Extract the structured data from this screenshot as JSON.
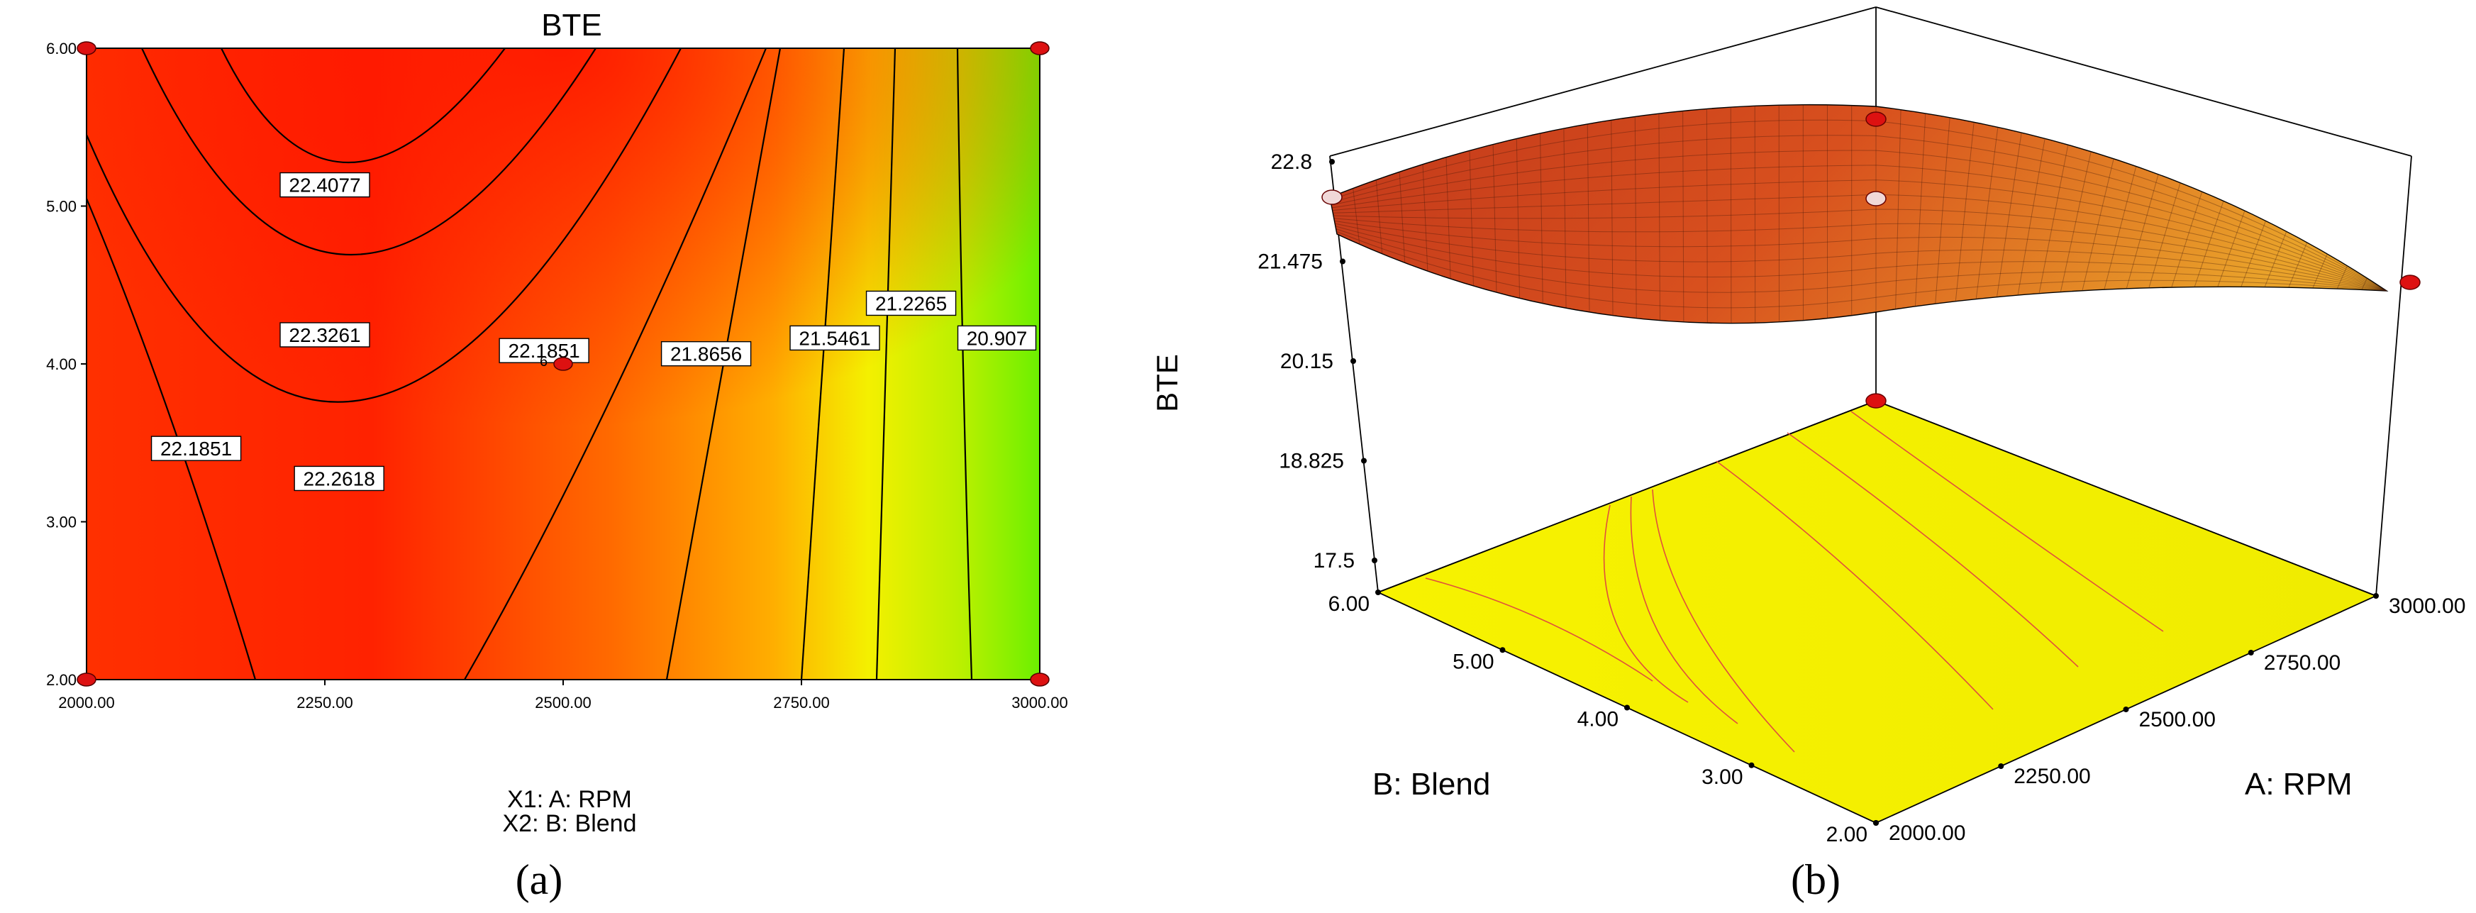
{
  "chart_data": [
    {
      "panel": "(a)",
      "type": "contour",
      "title": "BTE",
      "x_ticks": [
        "2000.00",
        "2250.00",
        "2500.00",
        "2750.00",
        "3000.00"
      ],
      "y_ticks": [
        "2.00",
        "3.00",
        "4.00",
        "5.00",
        "6.00"
      ],
      "xlim": [
        2000,
        3000
      ],
      "ylim": [
        2,
        6
      ],
      "factor_lines": [
        "X1: A: RPM",
        "X2: B: Blend"
      ],
      "contour_levels": [
        "22.4077",
        "22.3261",
        "22.2618",
        "22.1851",
        "21.8656",
        "21.5461",
        "21.2265",
        "20.907"
      ],
      "design_points": [
        {
          "x": 2000,
          "y": 2
        },
        {
          "x": 2000,
          "y": 6
        },
        {
          "x": 3000,
          "y": 2
        },
        {
          "x": 3000,
          "y": 6
        },
        {
          "x": 2500,
          "y": 4
        }
      ],
      "center_point_label": "6",
      "colors": {
        "high": "#ff1a00",
        "mid": "#ff9900",
        "yellow": "#f2f200",
        "low": "#80ff00"
      }
    },
    {
      "panel": "(b)",
      "type": "surface3d",
      "zlabel": "BTE",
      "z_ticks": [
        "22.8",
        "21.475",
        "20.15",
        "18.825",
        "17.5"
      ],
      "zlim": [
        17.5,
        22.8
      ],
      "x_axis_label": "A: RPM",
      "x_ticks": [
        "2000.00",
        "2250.00",
        "2500.00",
        "2750.00",
        "3000.00"
      ],
      "y_axis_label": "B: Blend",
      "y_ticks": [
        "2.00",
        "3.00",
        "4.00",
        "5.00",
        "6.00"
      ],
      "colors": {
        "surface_high": "#c83c14",
        "surface_low": "#e69a1e",
        "floor": "#f5f000",
        "floor_contour": "#e0503c"
      }
    }
  ],
  "panel_labels": [
    "(a)",
    "(b)"
  ]
}
